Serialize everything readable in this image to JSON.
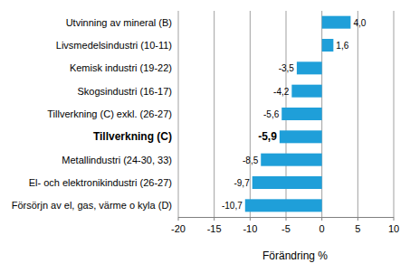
{
  "chart_data": {
    "type": "bar",
    "orientation": "horizontal",
    "categories": [
      "Utvinning av mineral (B)",
      "Livsmedelsindustri (10-11)",
      "Kemisk industri (19-22)",
      "Skogsindustri (16-17)",
      "Tillverkning (C) exkl. (26-27)",
      "Tillverkning (C)",
      "Metallindustri (24-30, 33)",
      "El- och elektronikindustri (26-27)",
      "Försörjn av el, gas, värme o kyla (D)"
    ],
    "values": [
      4.0,
      1.6,
      -3.5,
      -4.2,
      -5.6,
      -5.9,
      -8.5,
      -9.7,
      -10.7
    ],
    "value_labels": [
      "4,0",
      "1,6",
      "-3,5",
      "-4,2",
      "-5,6",
      "-5,9",
      "-8,5",
      "-9,7",
      "-10,7"
    ],
    "color": "#1f9fd9",
    "xlabel": "Förändring %",
    "xlim": [
      -20,
      10
    ],
    "xticks": [
      -20,
      -15,
      -10,
      -5,
      0,
      5,
      10
    ],
    "grid": true,
    "data_labels": true
  }
}
